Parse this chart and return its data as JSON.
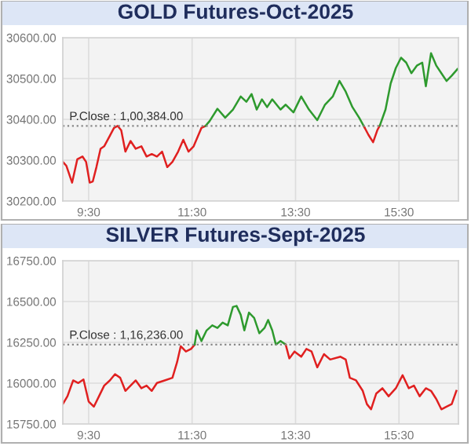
{
  "chart_data": [
    {
      "type": "line",
      "title": "GOLD Futures-Oct-2025",
      "xlim": [
        9.0,
        16.65
      ],
      "ylim": [
        30200,
        30600
      ],
      "xticks": [
        {
          "value": 9.5,
          "label": "9:30"
        },
        {
          "value": 11.5,
          "label": "11:30"
        },
        {
          "value": 13.5,
          "label": "13:30"
        },
        {
          "value": 15.5,
          "label": "15:30"
        }
      ],
      "yticks": [
        {
          "value": 30200,
          "label": "30200.00"
        },
        {
          "value": 30300,
          "label": "30300.00"
        },
        {
          "value": 30400,
          "label": "30400.00"
        },
        {
          "value": 30500,
          "label": "30500.00"
        },
        {
          "value": 30600,
          "label": "30600.00"
        }
      ],
      "grid": true,
      "legend": false,
      "marker": "none",
      "line_style": "solid",
      "ref_lines": [
        {
          "axis": "y",
          "value": 30384,
          "color": "#888888",
          "line_style": "dotted"
        }
      ],
      "annotations": [
        "P.Close : 1,00,384.00"
      ],
      "series": [
        {
          "color": "#e02020",
          "x": [
            9.0,
            9.07,
            9.18,
            9.28,
            9.38,
            9.45,
            9.52,
            9.58,
            9.65,
            9.73,
            9.8,
            9.91,
            9.99,
            10.06,
            10.13,
            10.21,
            10.31,
            10.41,
            10.52,
            10.62,
            10.72,
            10.82,
            10.92,
            11.02,
            11.12,
            11.23,
            11.33,
            11.43,
            11.53,
            11.68,
            11.76
          ],
          "values": [
            30296,
            30286,
            30245,
            30302,
            30309,
            30296,
            30245,
            30248,
            30283,
            30328,
            30334,
            30360,
            30379,
            30384,
            30373,
            30321,
            30347,
            30328,
            30334,
            30309,
            30315,
            30309,
            30321,
            30283,
            30296,
            30321,
            30350,
            30321,
            30334,
            30379,
            30384
          ]
        },
        {
          "color": "#2e9a2e",
          "x": [
            11.76,
            11.84,
            11.99,
            12.14,
            12.29,
            12.44,
            12.55,
            12.65,
            12.75,
            12.85,
            12.95,
            13.05,
            13.21,
            13.31,
            13.46,
            13.61,
            13.76,
            13.92,
            14.07,
            14.22,
            14.35,
            14.47,
            14.6,
            14.73,
            14.83
          ],
          "values": [
            30384,
            30396,
            30426,
            30404,
            30424,
            30456,
            30443,
            30462,
            30424,
            30449,
            30430,
            30449,
            30424,
            30436,
            30417,
            30456,
            30424,
            30398,
            30436,
            30456,
            30494,
            30468,
            30430,
            30404,
            30381
          ]
        },
        {
          "color": "#e02020",
          "x": [
            14.83,
            14.91,
            15.0,
            15.08,
            15.13
          ],
          "values": [
            30381,
            30362,
            30344,
            30373,
            30385
          ]
        },
        {
          "color": "#2e9a2e",
          "x": [
            15.13,
            15.24,
            15.34,
            15.44,
            15.54,
            15.64,
            15.74,
            15.85,
            15.95,
            16.02,
            16.12,
            16.22,
            16.32,
            16.42,
            16.52,
            16.63
          ],
          "values": [
            30385,
            30424,
            30488,
            30526,
            30551,
            30539,
            30513,
            30532,
            30539,
            30481,
            30562,
            30532,
            30513,
            30494,
            30507,
            30523
          ]
        }
      ]
    },
    {
      "type": "line",
      "title": "SILVER Futures-Sept-2025",
      "xlim": [
        9.0,
        16.65
      ],
      "ylim": [
        15750,
        16750
      ],
      "xticks": [
        {
          "value": 9.5,
          "label": "9:30"
        },
        {
          "value": 11.5,
          "label": "11:30"
        },
        {
          "value": 13.5,
          "label": "13:30"
        },
        {
          "value": 15.5,
          "label": "15:30"
        }
      ],
      "yticks": [
        {
          "value": 15750,
          "label": "15750.00"
        },
        {
          "value": 16000,
          "label": "16000.00"
        },
        {
          "value": 16250,
          "label": "16250.00"
        },
        {
          "value": 16500,
          "label": "16500.00"
        },
        {
          "value": 16750,
          "label": "16750.00"
        }
      ],
      "grid": true,
      "legend": false,
      "marker": "none",
      "line_style": "solid",
      "ref_lines": [
        {
          "axis": "y",
          "value": 16236,
          "color": "#888888",
          "line_style": "dotted"
        }
      ],
      "annotations": [
        "P.Close : 1,16,236.00"
      ],
      "series": [
        {
          "color": "#e02020",
          "x": [
            9.0,
            9.09,
            9.2,
            9.3,
            9.4,
            9.5,
            9.6,
            9.7,
            9.8,
            9.91,
            10.01,
            10.11,
            10.21,
            10.31,
            10.41,
            10.52,
            10.62,
            10.72,
            10.82,
            10.97,
            11.12,
            11.21,
            11.28,
            11.38,
            11.48,
            11.55
          ],
          "values": [
            15872,
            15920,
            16017,
            16001,
            16023,
            15888,
            15856,
            15920,
            15985,
            16017,
            16055,
            16033,
            15953,
            15985,
            16017,
            15969,
            15985,
            15953,
            16001,
            16017,
            16033,
            16129,
            16226,
            16194,
            16210,
            16236
          ]
        },
        {
          "color": "#2e9a2e",
          "x": [
            11.55,
            11.59,
            11.68,
            11.78,
            11.89,
            11.99,
            12.09,
            12.19,
            12.29,
            12.36,
            12.44,
            12.51,
            12.6,
            12.7,
            12.8,
            12.9,
            12.97,
            13.05,
            13.12,
            13.21,
            13.31
          ],
          "values": [
            16236,
            16323,
            16258,
            16323,
            16354,
            16338,
            16371,
            16354,
            16467,
            16473,
            16419,
            16323,
            16432,
            16400,
            16306,
            16338,
            16387,
            16323,
            16236,
            16258,
            16236
          ]
        },
        {
          "color": "#e02020",
          "x": [
            13.31,
            13.38,
            13.48,
            13.61,
            13.71,
            13.81,
            13.92,
            14.05,
            14.17,
            14.37,
            14.47,
            14.55,
            14.67,
            14.8,
            14.88,
            14.96,
            15.06,
            15.18,
            15.3,
            15.44,
            15.57,
            15.69,
            15.79,
            15.9,
            16.02,
            16.12,
            16.22,
            16.32,
            16.42,
            16.52,
            16.61
          ],
          "values": [
            16236,
            16152,
            16194,
            16162,
            16210,
            16194,
            16097,
            16178,
            16145,
            16162,
            16145,
            16033,
            16017,
            15953,
            15872,
            15840,
            15936,
            15969,
            15920,
            15969,
            16049,
            15969,
            15985,
            15920,
            15969,
            15953,
            15904,
            15840,
            15856,
            15872,
            15953
          ]
        }
      ]
    }
  ]
}
